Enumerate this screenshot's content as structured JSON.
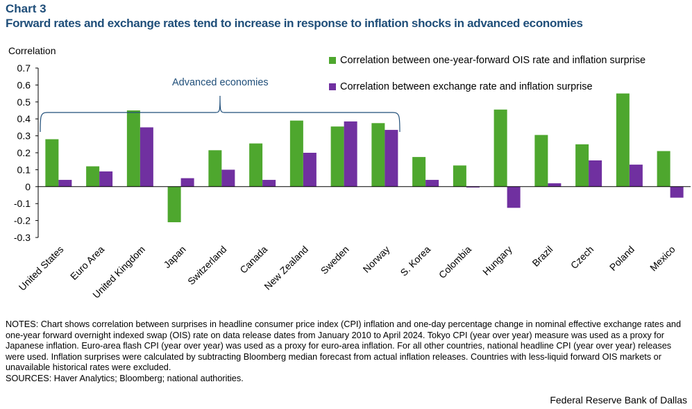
{
  "header": {
    "chart_number": "Chart 3",
    "title": "Forward rates and exchange rates tend to increase in response to inflation shocks in advanced economies"
  },
  "annotation": "Advanced economies",
  "notes": "NOTES: Chart shows correlation between surprises in headline consumer price index (CPI) inflation and one-day percentage change in nominal effective exchange rates and one-year forward overnight indexed swap (OIS) rate on data release dates from January 2010 to April 2024. Tokyo CPI (year over year) measure was used as a proxy for Japanese inflation. Euro-area flash CPI (year over year) was used as a proxy for euro-area inflation. For all other countries, national headline CPI (year over year) releases were used. Inflation surprises were calculated by subtracting Bloomberg median forecast from actual inflation releases. Countries with less-liquid forward OIS markets or unavailable historical rates were excluded.",
  "sources": "SOURCES: Haver Analytics; Bloomberg; national authorities.",
  "credit": "Federal Reserve Bank of Dallas",
  "colors": {
    "green": "#4ea72e",
    "purple": "#7030a0",
    "bracket": "#1f4e79",
    "title": "#1f4e79"
  },
  "chart_data": {
    "type": "bar",
    "ylabel": "Correlation",
    "ylim": [
      -0.3,
      0.7
    ],
    "yticks": [
      "0.7",
      "0.6",
      "0.5",
      "0.4",
      "0.3",
      "0.2",
      "0.1",
      "0",
      "-0.1",
      "-0.2",
      "-0.3"
    ],
    "grid": false,
    "legend_position": "top-right",
    "categories": [
      "United States",
      "Euro Area",
      "United Kingdom",
      "Japan",
      "Switzerland",
      "Canada",
      "New Zealand",
      "Sweden",
      "Norway",
      "S. Korea",
      "Colombia",
      "Hungary",
      "Brazil",
      "Czech",
      "Poland",
      "Mexico"
    ],
    "series": [
      {
        "name": "Correlation between one-year-forward OIS rate and inflation surprise",
        "color": "#4ea72e",
        "values": [
          0.28,
          0.12,
          0.45,
          -0.21,
          0.215,
          0.255,
          0.39,
          0.355,
          0.375,
          0.175,
          0.125,
          0.455,
          0.305,
          0.25,
          0.55,
          0.21
        ]
      },
      {
        "name": "Correlation between exchange rate and inflation surprise",
        "color": "#7030a0",
        "values": [
          0.04,
          0.09,
          0.35,
          0.05,
          0.1,
          0.04,
          0.2,
          0.385,
          0.335,
          0.04,
          -0.005,
          -0.125,
          0.02,
          0.155,
          0.13,
          -0.065
        ]
      }
    ]
  }
}
